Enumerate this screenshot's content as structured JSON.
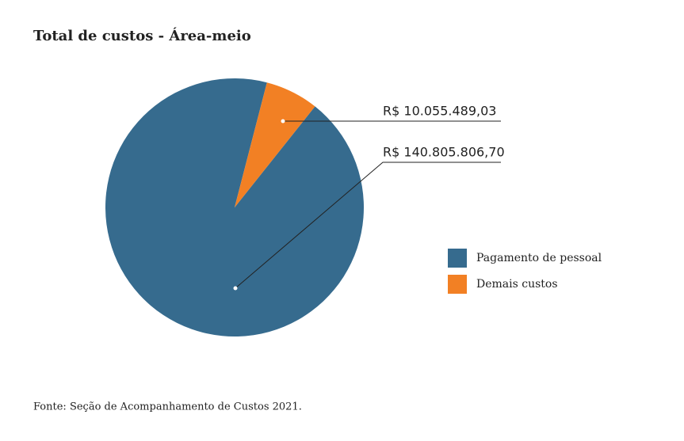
{
  "chart_data": {
    "type": "pie",
    "title": "Total de custos - Área-meio",
    "categories": [
      "Pagamento de pessoal",
      "Demais custos"
    ],
    "values": [
      140805806.7,
      10055489.03
    ],
    "value_labels": [
      "R$ 140.805.806,70",
      "R$ 10.055.489,03"
    ],
    "colors": [
      "#366b8e",
      "#f28024"
    ],
    "source": "Fonte: Seção de Acompanhamento de Custos 2021."
  }
}
